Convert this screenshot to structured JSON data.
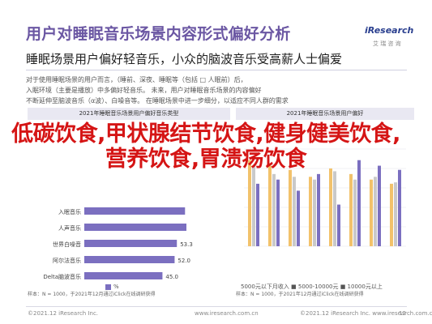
{
  "header": {
    "title": "用户对睡眠音乐场景内容形式偏好分析",
    "subtitle": "睡眠场景用户偏好轻音乐，小众的脑波音乐受高薪人士偏爱",
    "logo_text": "iResearch",
    "logo_sub": "艾 瑞 咨 询"
  },
  "intro": {
    "line1": "对于使用睡眠场景的用户而言，（睡前、深夜、睡眠等（包括 □ 人眠前）后，",
    "line2": "入眠环境（主要是播放）中多偏好轻音乐。 未来，用户对睡眠音乐场景的内容偏好",
    "line3": "不断延伸至脑波音乐（α波）、白噪音等。 在睡眠场景中进一步细分，以适应不同人群的需求"
  },
  "left_panel": {
    "header": "2021年睡眠音乐场景用户偏好音乐类型",
    "legend": "%",
    "note": "样本：N = 1000，于2021年12月通过iClick在线调研获得"
  },
  "right_panel": {
    "header": "2021年睡眠音乐场景用户偏好",
    "legend": "5000元以下月收入  ■  5000-10000元  ■  10000元以上",
    "note": "样本：N = 1000，于2021年12月通过iClick在线调研获得"
  },
  "overlay": {
    "text": "低碳饮食,甲状腺结节饮食,健身健美饮食,营养饮食,胃溃疡饮食"
  },
  "footer": {
    "left": "©2021.12 iResearch Inc.",
    "mid": "www.iresearch.com.cn",
    "right": "©2021.12 iResearch Inc.  www.iresearch.com.cn",
    "page": "12"
  },
  "colors": {
    "title": "#6b57a3",
    "bar_left": "#7b6fc0",
    "overlay": "#d51515",
    "series": [
      "#f2c26b",
      "#c9c9c9",
      "#7b6fc0"
    ]
  },
  "chart_data": [
    {
      "type": "bar",
      "orientation": "horizontal",
      "categories": [
        "入眠音乐",
        "人声音乐",
        "世界白噪音",
        "阿尔法音乐",
        "Delta脑波音乐"
      ],
      "values": [
        58.0,
        58.8,
        53.3,
        52.0,
        45.0
      ],
      "value_labels": [
        "",
        "",
        "53.3",
        "52.0",
        "45.0"
      ],
      "xlabel": "",
      "ylabel": ""
    },
    {
      "type": "bar",
      "orientation": "vertical",
      "categories": [
        "",
        "",
        "",
        "",
        "",
        "",
        "",
        ""
      ],
      "series": [
        {
          "name": "5000元以下月收入",
          "values": [
            62,
            58,
            55,
            50,
            56,
            52,
            48,
            45
          ]
        },
        {
          "name": "5000-10000元",
          "values": [
            58,
            52,
            50,
            48,
            54,
            48,
            50,
            46
          ]
        },
        {
          "name": "10000元以上",
          "values": [
            45,
            48,
            40,
            52,
            30,
            62,
            58,
            55
          ]
        }
      ],
      "ylim": [
        0,
        70
      ]
    }
  ]
}
